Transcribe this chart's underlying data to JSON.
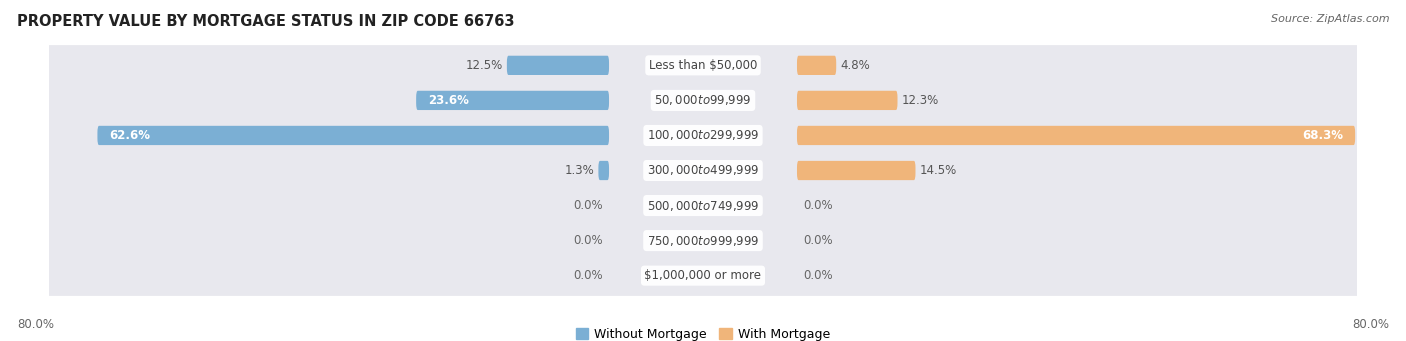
{
  "title": "PROPERTY VALUE BY MORTGAGE STATUS IN ZIP CODE 66763",
  "source": "Source: ZipAtlas.com",
  "categories": [
    "Less than $50,000",
    "$50,000 to $99,999",
    "$100,000 to $299,999",
    "$300,000 to $499,999",
    "$500,000 to $749,999",
    "$750,000 to $999,999",
    "$1,000,000 or more"
  ],
  "without_mortgage": [
    12.5,
    23.6,
    62.6,
    1.3,
    0.0,
    0.0,
    0.0
  ],
  "with_mortgage": [
    4.8,
    12.3,
    68.3,
    14.5,
    0.0,
    0.0,
    0.0
  ],
  "without_mortgage_color": "#7bafd4",
  "with_mortgage_color": "#f0b57a",
  "row_bg_color": "#e8e8ee",
  "max_val": 80.0,
  "axis_label_left": "80.0%",
  "axis_label_right": "80.0%",
  "title_fontsize": 10.5,
  "source_fontsize": 8,
  "label_fontsize": 8.5,
  "category_fontsize": 8.5,
  "legend_fontsize": 9
}
